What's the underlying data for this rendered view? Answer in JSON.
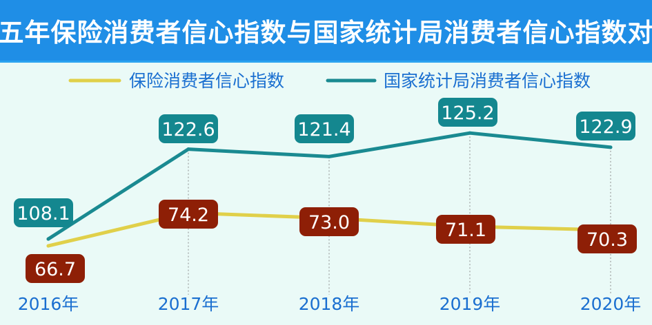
{
  "colors": {
    "title_bg": "#1f8ee6",
    "background": "#eafaf7",
    "insurance_line": "#e0d04a",
    "national_line": "#1a8a91",
    "insurance_label_bg": "#8e1f06",
    "national_label_bg": "#14878f",
    "axis_text": "#1a6fd0",
    "legend_text": "#1a6fd0",
    "guide_line": "#8c8c8c"
  },
  "chart_data": {
    "type": "line",
    "title": "近五年保险消费者信心指数与国家统计局消费者信心指数对比",
    "categories": [
      "2016年",
      "2017年",
      "2018年",
      "2019年",
      "2020年"
    ],
    "series": [
      {
        "name": "保险消费者信心指数",
        "values": [
          66.7,
          74.2,
          73.0,
          71.1,
          70.3
        ],
        "labels": [
          "66.7",
          "74.2",
          "73.0",
          "71.1",
          "70.3"
        ],
        "color": "#e0d04a",
        "label_color": "#8e1f06",
        "label_position": "below",
        "ylim": [
          60,
          85
        ]
      },
      {
        "name": "国家统计局消费者信心指数",
        "values": [
          108.1,
          122.6,
          121.4,
          125.2,
          122.9
        ],
        "labels": [
          "108.1",
          "122.6",
          "121.4",
          "125.2",
          "122.9"
        ],
        "color": "#1a8a91",
        "label_color": "#14878f",
        "label_position": "above",
        "ylim": [
          100,
          130
        ]
      }
    ],
    "legend": "top",
    "grid": false,
    "xlabel": "",
    "ylabel": ""
  }
}
